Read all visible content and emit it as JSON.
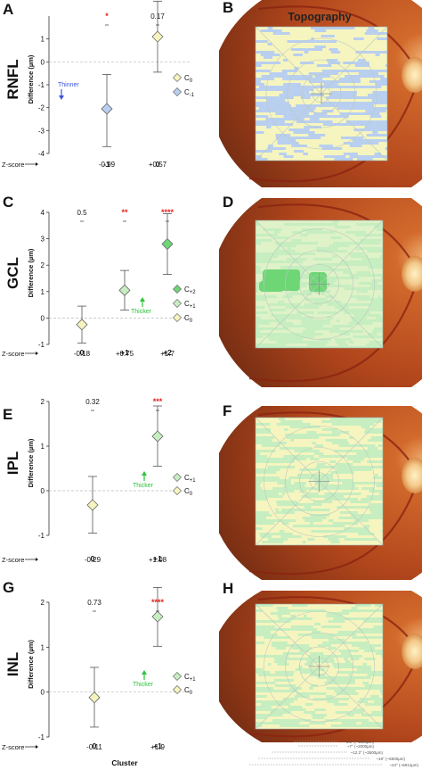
{
  "figure": {
    "topography_title": "Topography",
    "zscore_label": "Z-score",
    "cluster_label": "Cluster",
    "ylabel": "Difference (µm)",
    "thinner_label": "Thinner",
    "thicker_label": "Thicker",
    "image_labels": [
      "B",
      "D",
      "F",
      "H"
    ],
    "scale_labels": [
      "~6.2° (~1800µm)",
      "~7° (~2000µm)",
      "~12.2° (~3500µm)",
      "~19° (~5500µm)",
      "~24° (~6912µm)"
    ]
  },
  "colors": {
    "c0": "#f6f5bf",
    "cminus1": "#b9cff0",
    "cplus1": "#c6eec0",
    "cplus2": "#6fd676",
    "sig": "#e8201a",
    "blue_arrow": "#3a55e0",
    "green_arrow": "#2ec23a"
  },
  "chart_data": [
    {
      "panel": "A",
      "layer": "RNFL",
      "type": "scatter",
      "ylim": [
        -4,
        2
      ],
      "yticks": [
        -4,
        -3,
        -2,
        -1,
        0,
        1
      ],
      "categories": [
        "-1",
        "0"
      ],
      "zscores": [
        "-0.99",
        "+0.57"
      ],
      "points": [
        {
          "cluster": "-1",
          "mean": -2.05,
          "ci": [
            -3.7,
            -0.55
          ],
          "p": "*",
          "sig": true,
          "color": "cminus1"
        },
        {
          "cluster": "0",
          "mean": 1.1,
          "ci": [
            -0.45,
            2.65
          ],
          "p": "0.17",
          "sig": false,
          "color": "c0"
        }
      ],
      "legend": [
        {
          "color": "c0",
          "label": "C0",
          "sub": "0"
        },
        {
          "color": "cminus1",
          "label": "C-1",
          "sub": "-1"
        }
      ],
      "annotation": "thinner"
    },
    {
      "panel": "C",
      "layer": "GCL",
      "type": "scatter",
      "ylim": [
        -1,
        4
      ],
      "yticks": [
        -1,
        0,
        1,
        2,
        3,
        4
      ],
      "categories": [
        "0",
        "+1",
        "+2"
      ],
      "zscores": [
        "-0.18",
        "+0.75",
        "+1.7"
      ],
      "points": [
        {
          "cluster": "0",
          "mean": -0.25,
          "ci": [
            -0.95,
            0.45
          ],
          "p": "0.5",
          "sig": false,
          "color": "c0"
        },
        {
          "cluster": "+1",
          "mean": 1.05,
          "ci": [
            0.3,
            1.8
          ],
          "p": "**",
          "sig": true,
          "color": "cplus1"
        },
        {
          "cluster": "+2",
          "mean": 2.8,
          "ci": [
            1.65,
            3.95
          ],
          "p": "****",
          "sig": true,
          "color": "cplus2"
        }
      ],
      "legend": [
        {
          "color": "cplus2",
          "label": "C+2",
          "sub": "+2"
        },
        {
          "color": "cplus1",
          "label": "C+1",
          "sub": "+1"
        },
        {
          "color": "c0",
          "label": "C0",
          "sub": "0"
        }
      ],
      "annotation": "thicker"
    },
    {
      "panel": "E",
      "layer": "IPL",
      "type": "scatter",
      "ylim": [
        -1,
        2
      ],
      "yticks": [
        -1,
        0,
        1,
        2
      ],
      "categories": [
        "0",
        "+1"
      ],
      "zscores": [
        "-0.29",
        "+1.08"
      ],
      "points": [
        {
          "cluster": "0",
          "mean": -0.32,
          "ci": [
            -0.95,
            0.32
          ],
          "p": "0.32",
          "sig": false,
          "color": "c0"
        },
        {
          "cluster": "+1",
          "mean": 1.22,
          "ci": [
            0.55,
            1.9
          ],
          "p": "***",
          "sig": true,
          "color": "cplus1"
        }
      ],
      "legend": [
        {
          "color": "cplus1",
          "label": "C+1",
          "sub": "+1"
        },
        {
          "color": "c0",
          "label": "C0",
          "sub": "0"
        }
      ],
      "annotation": "thicker"
    },
    {
      "panel": "G",
      "layer": "INL",
      "type": "scatter",
      "ylim": [
        -1,
        2
      ],
      "yticks": [
        -1,
        0,
        1,
        2
      ],
      "categories": [
        "0",
        "+1"
      ],
      "zscores": [
        "-0.11",
        "+1.9"
      ],
      "points": [
        {
          "cluster": "0",
          "mean": -0.12,
          "ci": [
            -0.78,
            0.55
          ],
          "p": "0.73",
          "sig": false,
          "color": "c0"
        },
        {
          "cluster": "+1",
          "mean": 1.68,
          "ci": [
            1.02,
            2.33
          ],
          "p": "****",
          "sig": true,
          "color": "cplus1"
        }
      ],
      "legend": [
        {
          "color": "cplus1",
          "label": "C+1",
          "sub": "+1"
        },
        {
          "color": "c0",
          "label": "C0",
          "sub": "0"
        }
      ],
      "annotation": "thicker"
    }
  ]
}
